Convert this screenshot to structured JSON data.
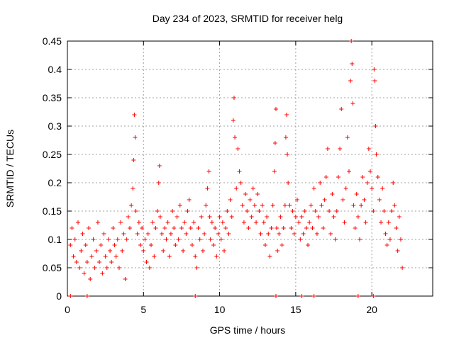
{
  "chart_data": {
    "type": "scatter",
    "title": "Day 234 of 2023, SRMTID for receiver helg",
    "xlabel": "GPS time / hours",
    "ylabel": "SRMTID / TECUs",
    "xlim": [
      0,
      24
    ],
    "ylim": [
      0,
      0.45
    ],
    "xticks": [
      0,
      5,
      10,
      15,
      20
    ],
    "xtick_labels": [
      "0",
      "5",
      "10",
      "15",
      "20"
    ],
    "yticks": [
      0,
      0.05,
      0.1,
      0.15,
      0.2,
      0.25,
      0.3,
      0.35,
      0.4,
      0.45
    ],
    "ytick_labels": [
      "0",
      "0.05",
      "0.1",
      "0.15",
      "0.2",
      "0.25",
      "0.3",
      "0.35",
      "0.4",
      "0.45"
    ],
    "grid": true,
    "marker": "+",
    "series_color": "#ff0000",
    "series": [
      {
        "name": "SRMTID",
        "points": [
          [
            0.2,
            0.09
          ],
          [
            0.3,
            0.12
          ],
          [
            0.4,
            0.07
          ],
          [
            0.5,
            0.1
          ],
          [
            0.6,
            0.06
          ],
          [
            0.7,
            0.13
          ],
          [
            0.8,
            0.05
          ],
          [
            0.9,
            0.08
          ],
          [
            1.0,
            0.11
          ],
          [
            1.1,
            0.04
          ],
          [
            1.2,
            0.09
          ],
          [
            1.3,
            0.06
          ],
          [
            1.4,
            0.12
          ],
          [
            1.5,
            0.03
          ],
          [
            1.6,
            0.07
          ],
          [
            1.7,
            0.1
          ],
          [
            1.8,
            0.05
          ],
          [
            1.9,
            0.08
          ],
          [
            2.0,
            0.13
          ],
          [
            2.1,
            0.06
          ],
          [
            2.2,
            0.09
          ],
          [
            2.3,
            0.04
          ],
          [
            2.4,
            0.11
          ],
          [
            2.5,
            0.07
          ],
          [
            2.6,
            0.05
          ],
          [
            2.7,
            0.1
          ],
          [
            2.8,
            0.08
          ],
          [
            2.9,
            0.06
          ],
          [
            3.0,
            0.12
          ],
          [
            3.1,
            0.09
          ],
          [
            3.2,
            0.07
          ],
          [
            3.3,
            0.1
          ],
          [
            3.4,
            0.05
          ],
          [
            3.5,
            0.13
          ],
          [
            3.6,
            0.08
          ],
          [
            3.7,
            0.11
          ],
          [
            3.8,
            0.03
          ],
          [
            3.9,
            0.1
          ],
          [
            4.0,
            0.14
          ],
          [
            4.1,
            0.12
          ],
          [
            4.2,
            0.16
          ],
          [
            4.3,
            0.19
          ],
          [
            4.35,
            0.24
          ],
          [
            4.4,
            0.32
          ],
          [
            4.45,
            0.28
          ],
          [
            4.5,
            0.15
          ],
          [
            4.6,
            0.11
          ],
          [
            4.7,
            0.13
          ],
          [
            4.8,
            0.09
          ],
          [
            4.9,
            0.12
          ],
          [
            5.0,
            0.08
          ],
          [
            5.1,
            0.1
          ],
          [
            5.2,
            0.06
          ],
          [
            5.3,
            0.11
          ],
          [
            5.4,
            0.05
          ],
          [
            5.5,
            0.09
          ],
          [
            5.6,
            0.13
          ],
          [
            5.7,
            0.07
          ],
          [
            5.8,
            0.12
          ],
          [
            5.9,
            0.15
          ],
          [
            6.0,
            0.2
          ],
          [
            6.05,
            0.23
          ],
          [
            6.1,
            0.14
          ],
          [
            6.2,
            0.11
          ],
          [
            6.3,
            0.08
          ],
          [
            6.4,
            0.12
          ],
          [
            6.5,
            0.1
          ],
          [
            6.6,
            0.13
          ],
          [
            6.7,
            0.07
          ],
          [
            6.8,
            0.11
          ],
          [
            6.9,
            0.15
          ],
          [
            7.0,
            0.12
          ],
          [
            7.1,
            0.09
          ],
          [
            7.2,
            0.14
          ],
          [
            7.3,
            0.1
          ],
          [
            7.4,
            0.16
          ],
          [
            7.5,
            0.12
          ],
          [
            7.6,
            0.08
          ],
          [
            7.7,
            0.13
          ],
          [
            7.8,
            0.11
          ],
          [
            7.9,
            0.15
          ],
          [
            8.0,
            0.17
          ],
          [
            8.1,
            0.12
          ],
          [
            8.2,
            0.09
          ],
          [
            8.3,
            0.13
          ],
          [
            8.4,
            0.07
          ],
          [
            8.5,
            0.05
          ],
          [
            8.6,
            0.12
          ],
          [
            8.7,
            0.1
          ],
          [
            8.8,
            0.14
          ],
          [
            8.9,
            0.08
          ],
          [
            9.0,
            0.11
          ],
          [
            9.1,
            0.16
          ],
          [
            9.2,
            0.19
          ],
          [
            9.3,
            0.22
          ],
          [
            9.35,
            0.14
          ],
          [
            9.4,
            0.1
          ],
          [
            9.5,
            0.13
          ],
          [
            9.6,
            0.09
          ],
          [
            9.7,
            0.12
          ],
          [
            9.8,
            0.07
          ],
          [
            9.9,
            0.11
          ],
          [
            10.0,
            0.14
          ],
          [
            10.1,
            0.1
          ],
          [
            10.2,
            0.13
          ],
          [
            10.3,
            0.08
          ],
          [
            10.4,
            0.12
          ],
          [
            10.5,
            0.15
          ],
          [
            10.6,
            0.11
          ],
          [
            10.7,
            0.17
          ],
          [
            10.8,
            0.14
          ],
          [
            10.9,
            0.31
          ],
          [
            10.95,
            0.35
          ],
          [
            11.0,
            0.28
          ],
          [
            11.1,
            0.19
          ],
          [
            11.2,
            0.26
          ],
          [
            11.3,
            0.22
          ],
          [
            11.4,
            0.2
          ],
          [
            11.5,
            0.16
          ],
          [
            11.6,
            0.13
          ],
          [
            11.7,
            0.18
          ],
          [
            11.8,
            0.15
          ],
          [
            11.9,
            0.12
          ],
          [
            12.0,
            0.17
          ],
          [
            12.1,
            0.14
          ],
          [
            12.2,
            0.19
          ],
          [
            12.3,
            0.16
          ],
          [
            12.4,
            0.13
          ],
          [
            12.5,
            0.18
          ],
          [
            12.6,
            0.15
          ],
          [
            12.7,
            0.11
          ],
          [
            12.8,
            0.16
          ],
          [
            12.9,
            0.13
          ],
          [
            13.0,
            0.09
          ],
          [
            13.1,
            0.14
          ],
          [
            13.2,
            0.11
          ],
          [
            13.3,
            0.07
          ],
          [
            13.4,
            0.12
          ],
          [
            13.5,
            0.16
          ],
          [
            13.6,
            0.22
          ],
          [
            13.65,
            0.27
          ],
          [
            13.7,
            0.33
          ],
          [
            13.75,
            0.12
          ],
          [
            13.8,
            0.08
          ],
          [
            13.9,
            0.11
          ],
          [
            14.0,
            0.14
          ],
          [
            14.1,
            0.09
          ],
          [
            14.2,
            0.12
          ],
          [
            14.3,
            0.16
          ],
          [
            14.35,
            0.28
          ],
          [
            14.4,
            0.32
          ],
          [
            14.45,
            0.25
          ],
          [
            14.5,
            0.2
          ],
          [
            14.6,
            0.16
          ],
          [
            14.7,
            0.12
          ],
          [
            14.8,
            0.15
          ],
          [
            14.9,
            0.11
          ],
          [
            15.0,
            0.14
          ],
          [
            15.1,
            0.17
          ],
          [
            15.2,
            0.13
          ],
          [
            15.3,
            0.1
          ],
          [
            15.4,
            0.14
          ],
          [
            15.5,
            0.11
          ],
          [
            15.6,
            0.15
          ],
          [
            15.7,
            0.12
          ],
          [
            15.8,
            0.09
          ],
          [
            15.9,
            0.13
          ],
          [
            16.0,
            0.16
          ],
          [
            16.1,
            0.12
          ],
          [
            16.2,
            0.19
          ],
          [
            16.3,
            0.15
          ],
          [
            16.4,
            0.11
          ],
          [
            16.5,
            0.14
          ],
          [
            16.6,
            0.2
          ],
          [
            16.7,
            0.16
          ],
          [
            16.8,
            0.12
          ],
          [
            16.9,
            0.17
          ],
          [
            17.0,
            0.21
          ],
          [
            17.1,
            0.26
          ],
          [
            17.2,
            0.15
          ],
          [
            17.3,
            0.11
          ],
          [
            17.4,
            0.18
          ],
          [
            17.5,
            0.14
          ],
          [
            17.6,
            0.1
          ],
          [
            17.7,
            0.15
          ],
          [
            17.8,
            0.21
          ],
          [
            17.9,
            0.26
          ],
          [
            18.0,
            0.33
          ],
          [
            18.1,
            0.17
          ],
          [
            18.2,
            0.13
          ],
          [
            18.3,
            0.19
          ],
          [
            18.4,
            0.28
          ],
          [
            18.5,
            0.22
          ],
          [
            18.6,
            0.38
          ],
          [
            18.65,
            0.45
          ],
          [
            18.7,
            0.41
          ],
          [
            18.75,
            0.34
          ],
          [
            18.8,
            0.16
          ],
          [
            18.9,
            0.12
          ],
          [
            19.0,
            0.18
          ],
          [
            19.1,
            0.14
          ],
          [
            19.2,
            0.1
          ],
          [
            19.3,
            0.16
          ],
          [
            19.4,
            0.21
          ],
          [
            19.5,
            0.17
          ],
          [
            19.6,
            0.13
          ],
          [
            19.7,
            0.2
          ],
          [
            19.8,
            0.26
          ],
          [
            19.9,
            0.22
          ],
          [
            20.0,
            0.19
          ],
          [
            20.1,
            0.15
          ],
          [
            20.15,
            0.4
          ],
          [
            20.2,
            0.38
          ],
          [
            20.25,
            0.3
          ],
          [
            20.3,
            0.25
          ],
          [
            20.4,
            0.21
          ],
          [
            20.5,
            0.17
          ],
          [
            20.6,
            0.13
          ],
          [
            20.7,
            0.19
          ],
          [
            20.8,
            0.15
          ],
          [
            20.9,
            0.11
          ],
          [
            21.0,
            0.09
          ],
          [
            21.1,
            0.13
          ],
          [
            21.2,
            0.1
          ],
          [
            21.3,
            0.15
          ],
          [
            21.4,
            0.2
          ],
          [
            21.5,
            0.16
          ],
          [
            21.6,
            0.12
          ],
          [
            21.7,
            0.08
          ],
          [
            21.8,
            0.14
          ],
          [
            21.9,
            0.1
          ],
          [
            22.0,
            0.05
          ]
        ]
      }
    ],
    "zero_markers_x": [
      0.2,
      1.3,
      8.4,
      13.7,
      15.4,
      16.2,
      19.1,
      20.1
    ]
  }
}
